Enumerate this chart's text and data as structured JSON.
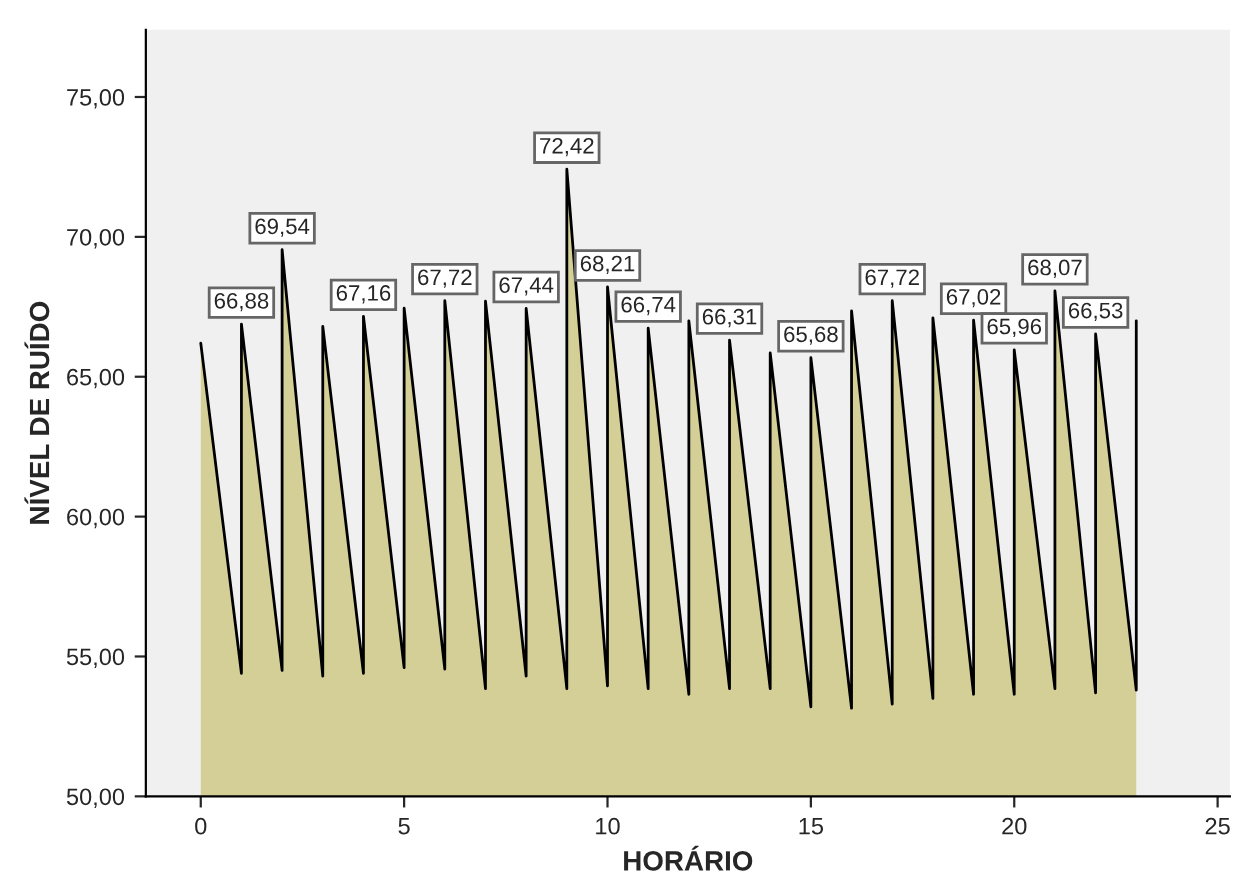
{
  "chart_data": {
    "type": "area",
    "xlabel": "HORÁRIO",
    "ylabel": "NÍVEL DE RUÍDO",
    "xlim": [
      -1.35,
      25.3
    ],
    "xticks": [
      0,
      5,
      10,
      15,
      20,
      25
    ],
    "ylim": [
      50,
      77.4
    ],
    "yticks": [
      {
        "value": 50,
        "label": "50,00"
      },
      {
        "value": 55,
        "label": "55,00"
      },
      {
        "value": 60,
        "label": "60,00"
      },
      {
        "value": 65,
        "label": "65,00"
      },
      {
        "value": 70,
        "label": "70,00"
      },
      {
        "value": 75,
        "label": "75,00"
      }
    ],
    "grid": false,
    "legend": false,
    "marker": "none",
    "line_style": "solid",
    "series": [
      {
        "color": "#d3cf97",
        "x": [
          0,
          1,
          1,
          2,
          2,
          3,
          3,
          4,
          4,
          5,
          5,
          6,
          6,
          7,
          7,
          8,
          8,
          9,
          9,
          10,
          10,
          11,
          11,
          12,
          12,
          13,
          13,
          14,
          14,
          15,
          15,
          16,
          16,
          17,
          17,
          18,
          18,
          19,
          19,
          20,
          20,
          21,
          21,
          22,
          22,
          23,
          23
        ],
        "values": [
          66.2,
          54.4,
          66.88,
          54.5,
          69.54,
          54.3,
          66.8,
          54.4,
          67.16,
          54.6,
          67.45,
          54.55,
          67.72,
          53.85,
          67.7,
          54.3,
          67.44,
          53.85,
          72.42,
          53.95,
          68.21,
          53.85,
          66.74,
          53.65,
          67.0,
          53.85,
          66.31,
          53.85,
          65.85,
          53.2,
          65.68,
          53.15,
          67.35,
          53.3,
          67.72,
          53.5,
          67.1,
          53.65,
          67.02,
          53.65,
          65.96,
          53.85,
          68.07,
          53.7,
          66.53,
          53.8,
          67.0
        ],
        "value_labels": [
          null,
          null,
          "66,88",
          null,
          "69,54",
          null,
          null,
          null,
          "67,16",
          null,
          null,
          null,
          "67,72",
          null,
          null,
          null,
          "67,44",
          null,
          "72,42",
          null,
          "68,21",
          null,
          "66,74",
          null,
          null,
          null,
          "66,31",
          null,
          null,
          null,
          "65,68",
          null,
          null,
          null,
          "67,72",
          null,
          null,
          null,
          "67,02",
          null,
          "65,96",
          null,
          "68,07",
          null,
          "66,53",
          null,
          null
        ]
      }
    ]
  }
}
